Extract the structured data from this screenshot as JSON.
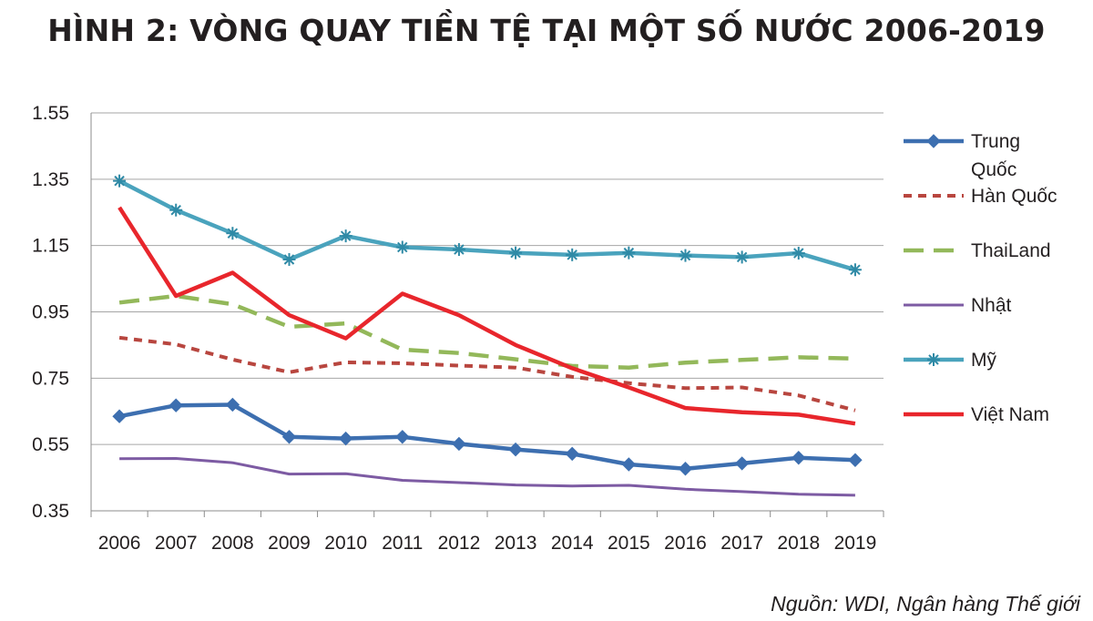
{
  "chart_data": {
    "type": "line",
    "title": "HÌNH 2: VÒNG QUAY TIỀN TỆ TẠI MỘT SỐ NƯỚC 2006-2019",
    "xlabel": "",
    "ylabel": "",
    "x": [
      "2006",
      "2007",
      "2008",
      "2009",
      "2010",
      "2011",
      "2012",
      "2013",
      "2014",
      "2015",
      "2016",
      "2017",
      "2018",
      "2019"
    ],
    "ylim": [
      0.35,
      1.55
    ],
    "yticks": [
      "1.55",
      "1.35",
      "1.15",
      "0.95",
      "0.75",
      "0.55",
      "0.35"
    ],
    "grid": true,
    "legend_position": "right",
    "series": [
      {
        "name": "Trung Quốc",
        "color": "#3d6fb0",
        "style": "solid",
        "marker": "diamond",
        "values": [
          0.635,
          0.668,
          0.67,
          0.573,
          0.568,
          0.573,
          0.552,
          0.535,
          0.522,
          0.49,
          0.477,
          0.493,
          0.51,
          0.503
        ]
      },
      {
        "name": "Hàn Quốc",
        "color": "#b8463f",
        "style": "dotted",
        "marker": "none",
        "values": [
          0.872,
          0.852,
          0.806,
          0.768,
          0.798,
          0.795,
          0.788,
          0.782,
          0.754,
          0.735,
          0.72,
          0.722,
          0.698,
          0.653
        ]
      },
      {
        "name": "ThaiLand",
        "color": "#93b85a",
        "style": "dashed",
        "marker": "none",
        "values": [
          0.978,
          0.998,
          0.973,
          0.905,
          0.915,
          0.836,
          0.826,
          0.807,
          0.787,
          0.782,
          0.797,
          0.805,
          0.813,
          0.809
        ]
      },
      {
        "name": "Nhật",
        "color": "#7d5ba3",
        "style": "solid",
        "marker": "none",
        "values": [
          0.507,
          0.508,
          0.495,
          0.461,
          0.462,
          0.442,
          0.435,
          0.428,
          0.425,
          0.427,
          0.415,
          0.408,
          0.4,
          0.397
        ]
      },
      {
        "name": "Mỹ",
        "color": "#4aa3bd",
        "style": "solid",
        "marker": "asterisk",
        "values": [
          1.345,
          1.257,
          1.187,
          1.108,
          1.179,
          1.145,
          1.138,
          1.128,
          1.122,
          1.128,
          1.12,
          1.115,
          1.127,
          1.077
        ]
      },
      {
        "name": "Việt Nam",
        "color": "#e8262c",
        "style": "solid",
        "marker": "none",
        "values": [
          1.265,
          0.998,
          1.068,
          0.94,
          0.87,
          1.005,
          0.94,
          0.85,
          0.78,
          0.722,
          0.66,
          0.647,
          0.64,
          0.613
        ]
      }
    ],
    "legend_lines": [
      [
        "Trung",
        "Quốc"
      ],
      [
        "Hàn Quốc"
      ],
      [
        "ThaiLand"
      ],
      [
        "Nhật"
      ],
      [
        "Mỹ"
      ],
      [
        "Việt Nam"
      ]
    ]
  },
  "source": "Nguồn: WDI, Ngân hàng Thế giới"
}
